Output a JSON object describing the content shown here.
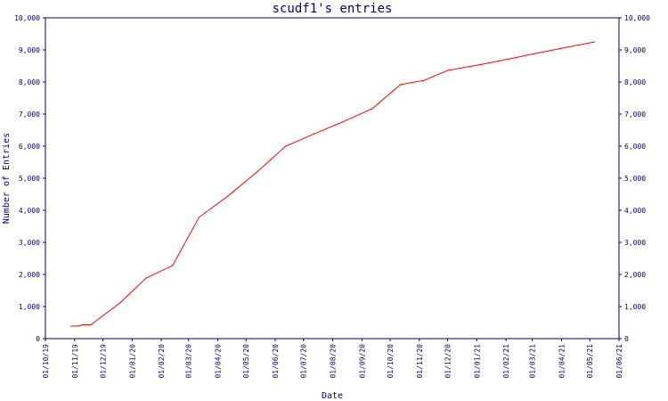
{
  "chart_data": {
    "type": "line",
    "title": "scudf1's entries",
    "xlabel": "Date",
    "ylabel": "Number of Entries",
    "x_ticks": [
      "01/10/19",
      "01/11/19",
      "01/12/19",
      "01/01/20",
      "01/02/20",
      "01/03/20",
      "01/04/20",
      "01/05/20",
      "01/06/20",
      "01/07/20",
      "01/08/20",
      "01/09/20",
      "01/10/20",
      "01/11/20",
      "01/12/20",
      "01/01/21",
      "01/02/21",
      "01/03/21",
      "01/04/21",
      "01/05/21",
      "01/06/21"
    ],
    "y_ticks": [
      "0",
      "1,000",
      "2,000",
      "3,000",
      "4,000",
      "5,000",
      "6,000",
      "7,000",
      "8,000",
      "9,000",
      "10,000"
    ],
    "ylim": [
      0,
      10000
    ],
    "xlim": [
      "2019-10-01",
      "2021-06-01"
    ],
    "grid": false,
    "y_axis_both_sides": true,
    "line_color": "#ff0000",
    "axis_color": "#000080",
    "series": [
      {
        "points": [
          {
            "x": "2019-10-28",
            "y": 390
          },
          {
            "x": "2019-11-06",
            "y": 395
          },
          {
            "x": "2019-11-09",
            "y": 430
          },
          {
            "x": "2019-11-18",
            "y": 430
          },
          {
            "x": "2019-12-19",
            "y": 1110
          },
          {
            "x": "2020-01-16",
            "y": 1890
          },
          {
            "x": "2020-02-13",
            "y": 2280
          },
          {
            "x": "2020-03-12",
            "y": 3780
          },
          {
            "x": "2020-04-12",
            "y": 4450
          },
          {
            "x": "2020-05-12",
            "y": 5180
          },
          {
            "x": "2020-06-12",
            "y": 6000
          },
          {
            "x": "2020-07-12",
            "y": 6380
          },
          {
            "x": "2020-08-12",
            "y": 6760
          },
          {
            "x": "2020-09-12",
            "y": 7170
          },
          {
            "x": "2020-10-12",
            "y": 7920
          },
          {
            "x": "2020-11-06",
            "y": 8050
          },
          {
            "x": "2020-12-01",
            "y": 8360
          },
          {
            "x": "2021-01-06",
            "y": 8550
          },
          {
            "x": "2021-02-06",
            "y": 8730
          },
          {
            "x": "2021-03-06",
            "y": 8900
          },
          {
            "x": "2021-04-06",
            "y": 9080
          },
          {
            "x": "2021-05-06",
            "y": 9250
          }
        ]
      }
    ]
  }
}
